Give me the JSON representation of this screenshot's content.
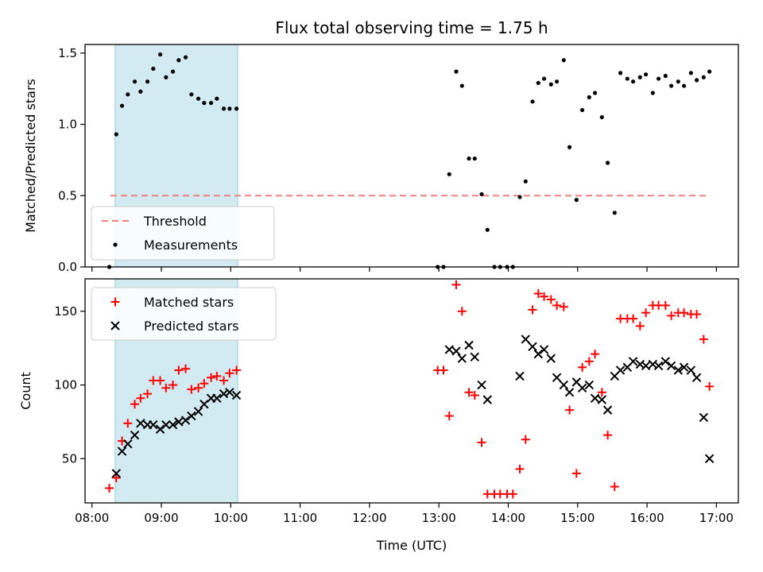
{
  "chart_data": [
    {
      "type": "scatter",
      "title": "Flux total observing time = 1.75 h",
      "ylabel": "Matched/Predicted stars",
      "xlabel": "",
      "ylim": [
        0,
        1.56
      ],
      "xlim": [
        "07:54",
        "17:19"
      ],
      "yticks": [
        0.0,
        0.5,
        1.0,
        1.5
      ],
      "ytick_labels": [
        "0.0",
        "0.5",
        "1.0",
        "1.5"
      ],
      "grid": false,
      "legend_position": "lower-left",
      "shaded_region": {
        "x_start": "08:20",
        "x_end": "10:06",
        "color": "#add8e6"
      },
      "series": [
        {
          "name": "Threshold",
          "kind": "dashed-line",
          "color": "#f08080",
          "x": [
            "08:16",
            "16:51"
          ],
          "y": [
            0.5,
            0.5
          ]
        },
        {
          "name": "Measurements",
          "kind": "dots",
          "color": "#000000",
          "x": [
            "08:15",
            "08:21",
            "08:26",
            "08:31",
            "08:37",
            "08:42",
            "08:48",
            "08:53",
            "08:59",
            "09:04",
            "09:10",
            "09:15",
            "09:21",
            "09:26",
            "09:32",
            "09:37",
            "09:43",
            "09:48",
            "09:54",
            "09:59",
            "10:05",
            "12:59",
            "13:04",
            "13:09",
            "13:15",
            "13:20",
            "13:26",
            "13:31",
            "13:37",
            "13:42",
            "13:48",
            "13:53",
            "13:59",
            "14:04",
            "14:10",
            "14:15",
            "14:21",
            "14:26",
            "14:31",
            "14:37",
            "14:42",
            "14:48",
            "14:53",
            "14:59",
            "15:04",
            "15:10",
            "15:15",
            "15:21",
            "15:26",
            "15:32",
            "15:37",
            "15:43",
            "15:48",
            "15:54",
            "15:59",
            "16:05",
            "16:10",
            "16:16",
            "16:21",
            "16:27",
            "16:32",
            "16:38",
            "16:43",
            "16:49",
            "16:54"
          ],
          "y": [
            0.0,
            0.93,
            1.13,
            1.21,
            1.3,
            1.23,
            1.3,
            1.39,
            1.49,
            1.33,
            1.37,
            1.45,
            1.47,
            1.21,
            1.18,
            1.15,
            1.15,
            1.18,
            1.11,
            1.11,
            1.11,
            0.0,
            0.0,
            0.65,
            1.37,
            1.27,
            0.76,
            0.76,
            0.51,
            0.26,
            0.0,
            0.0,
            0.0,
            0.0,
            0.49,
            0.6,
            1.16,
            1.29,
            1.32,
            1.28,
            1.3,
            1.45,
            0.84,
            0.47,
            1.1,
            1.19,
            1.22,
            1.05,
            0.73,
            0.38,
            1.36,
            1.32,
            1.3,
            1.33,
            1.35,
            1.22,
            1.32,
            1.34,
            1.27,
            1.3,
            1.27,
            1.36,
            1.31,
            1.33,
            1.37
          ]
        }
      ]
    },
    {
      "type": "scatter",
      "title": "",
      "ylabel": "Count",
      "xlabel": "Time (UTC)",
      "ylim": [
        20,
        172
      ],
      "xlim": [
        "07:54",
        "17:19"
      ],
      "yticks": [
        50,
        100,
        150
      ],
      "ytick_labels": [
        "50",
        "100",
        "150"
      ],
      "xtick_labels": [
        "08:00",
        "09:00",
        "10:00",
        "11:00",
        "12:00",
        "13:00",
        "14:00",
        "15:00",
        "16:00",
        "17:00"
      ],
      "xticks": [
        "08:00",
        "09:00",
        "10:00",
        "11:00",
        "12:00",
        "13:00",
        "14:00",
        "15:00",
        "16:00",
        "17:00"
      ],
      "grid": false,
      "legend_position": "upper-left",
      "shaded_region": {
        "x_start": "08:20",
        "x_end": "10:06",
        "color": "#add8e6"
      },
      "series": [
        {
          "name": "Matched stars",
          "kind": "plus",
          "color": "#ff0000",
          "x": [
            "08:15",
            "08:21",
            "08:26",
            "08:31",
            "08:37",
            "08:42",
            "08:48",
            "08:53",
            "08:59",
            "09:04",
            "09:10",
            "09:15",
            "09:21",
            "09:26",
            "09:32",
            "09:37",
            "09:43",
            "09:48",
            "09:54",
            "09:59",
            "10:05",
            "12:59",
            "13:04",
            "13:09",
            "13:15",
            "13:20",
            "13:26",
            "13:31",
            "13:37",
            "13:42",
            "13:48",
            "13:53",
            "13:59",
            "14:04",
            "14:10",
            "14:15",
            "14:21",
            "14:26",
            "14:31",
            "14:37",
            "14:42",
            "14:48",
            "14:53",
            "14:59",
            "15:04",
            "15:10",
            "15:15",
            "15:21",
            "15:26",
            "15:32",
            "15:37",
            "15:43",
            "15:48",
            "15:54",
            "15:59",
            "16:05",
            "16:10",
            "16:16",
            "16:21",
            "16:27",
            "16:32",
            "16:38",
            "16:43",
            "16:49",
            "16:54"
          ],
          "y": [
            30,
            37,
            62,
            74,
            87,
            91,
            94,
            103,
            103,
            98,
            100,
            110,
            111,
            97,
            98,
            101,
            105,
            106,
            103,
            108,
            110,
            110,
            110,
            79,
            168,
            150,
            95,
            93,
            61,
            26,
            26,
            26,
            26,
            26,
            43,
            63,
            151,
            162,
            160,
            158,
            154,
            153,
            83,
            40,
            112,
            116,
            121,
            95,
            66,
            31,
            145,
            145,
            145,
            140,
            149,
            154,
            154,
            154,
            147,
            149,
            149,
            148,
            148,
            131,
            99
          ]
        },
        {
          "name": "Predicted stars",
          "kind": "cross",
          "color": "#000000",
          "x": [
            "08:21",
            "08:26",
            "08:31",
            "08:37",
            "08:42",
            "08:48",
            "08:53",
            "08:59",
            "09:04",
            "09:10",
            "09:15",
            "09:21",
            "09:26",
            "09:32",
            "09:37",
            "09:43",
            "09:48",
            "09:54",
            "09:59",
            "10:05",
            "13:09",
            "13:15",
            "13:20",
            "13:26",
            "13:31",
            "13:37",
            "13:42",
            "14:10",
            "14:15",
            "14:21",
            "14:26",
            "14:31",
            "14:37",
            "14:42",
            "14:48",
            "14:53",
            "14:59",
            "15:04",
            "15:10",
            "15:15",
            "15:21",
            "15:26",
            "15:32",
            "15:37",
            "15:43",
            "15:48",
            "15:54",
            "15:59",
            "16:05",
            "16:10",
            "16:16",
            "16:21",
            "16:27",
            "16:32",
            "16:38",
            "16:43",
            "16:49",
            "16:54"
          ],
          "y": [
            40,
            55,
            60,
            66,
            74,
            73,
            73,
            70,
            73,
            73,
            75,
            76,
            79,
            82,
            87,
            91,
            91,
            94,
            95,
            93,
            124,
            123,
            118,
            127,
            119,
            100,
            90,
            106,
            131,
            126,
            121,
            124,
            118,
            105,
            100,
            95,
            102,
            98,
            100,
            91,
            90,
            83,
            106,
            110,
            112,
            116,
            114,
            113,
            114,
            113,
            116,
            113,
            110,
            112,
            110,
            105,
            78,
            50
          ]
        }
      ]
    }
  ]
}
